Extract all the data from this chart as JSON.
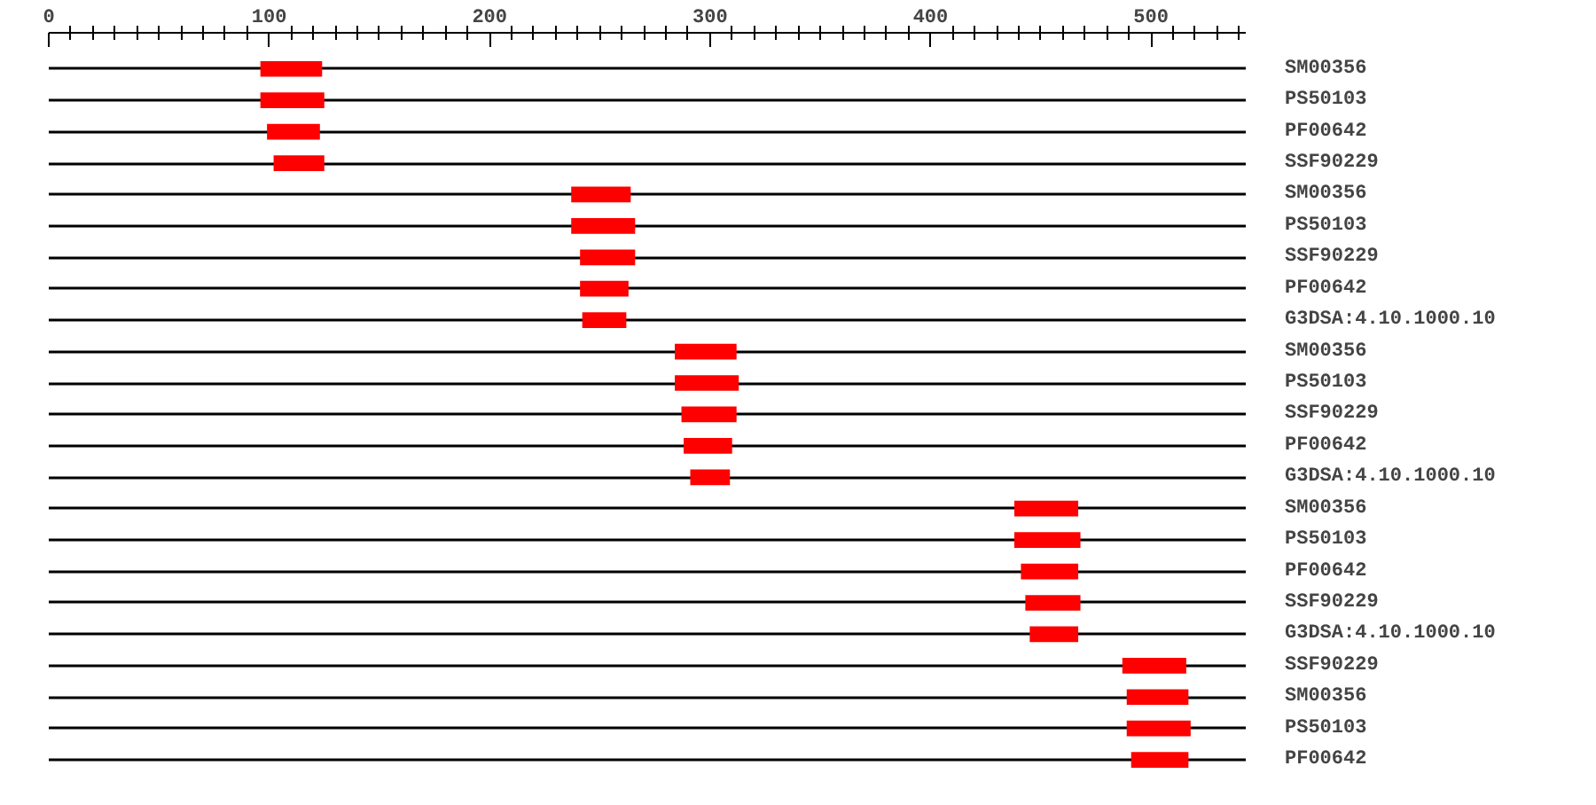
{
  "chart_data": {
    "type": "bar",
    "orientation": "horizontal",
    "categories": [
      "SM00356",
      "PS50103",
      "PF00642",
      "SSF90229",
      "SM00356",
      "PS50103",
      "SSF90229",
      "PF00642",
      "G3DSA:4.10.1000.10",
      "SM00356",
      "PS50103",
      "SSF90229",
      "PF00642",
      "G3DSA:4.10.1000.10",
      "SM00356",
      "PS50103",
      "PF00642",
      "SSF90229",
      "G3DSA:4.10.1000.10",
      "SSF90229",
      "SM00356",
      "PS50103",
      "PF00642"
    ],
    "base": [
      96,
      96,
      99,
      102,
      237,
      237,
      241,
      241,
      242,
      284,
      284,
      287,
      288,
      291,
      438,
      438,
      441,
      443,
      445,
      487,
      489,
      489,
      491
    ],
    "values": [
      28,
      29,
      24,
      23,
      27,
      29,
      25,
      22,
      20,
      28,
      29,
      25,
      22,
      18,
      29,
      30,
      26,
      25,
      22,
      29,
      28,
      29,
      26
    ],
    "color": "#ff0000",
    "xlim": [
      0,
      543
    ],
    "xticks": [
      0,
      {
        "value": 10,
        "label": null
      },
      {
        "value": 20,
        "label": null
      },
      {
        "value": 30,
        "label": null
      },
      {
        "value": 40,
        "label": null
      },
      {
        "value": 50,
        "label": null
      },
      {
        "value": 60,
        "label": null
      },
      {
        "value": 70,
        "label": null
      },
      {
        "value": 80,
        "label": null
      },
      {
        "value": 90,
        "label": null
      },
      100,
      {
        "value": 110,
        "label": null
      },
      {
        "value": 120,
        "label": null
      },
      {
        "value": 130,
        "label": null
      },
      {
        "value": 140,
        "label": null
      },
      {
        "value": 150,
        "label": null
      },
      {
        "value": 160,
        "label": null
      },
      {
        "value": 170,
        "label": null
      },
      {
        "value": 180,
        "label": null
      },
      {
        "value": 190,
        "label": null
      },
      200,
      {
        "value": 210,
        "label": null
      },
      {
        "value": 220,
        "label": null
      },
      {
        "value": 230,
        "label": null
      },
      {
        "value": 240,
        "label": null
      },
      {
        "value": 250,
        "label": null
      },
      {
        "value": 260,
        "label": null
      },
      {
        "value": 270,
        "label": null
      },
      {
        "value": 280,
        "label": null
      },
      {
        "value": 290,
        "label": null
      },
      300,
      {
        "value": 310,
        "label": null
      },
      {
        "value": 320,
        "label": null
      },
      {
        "value": 330,
        "label": null
      },
      {
        "value": 340,
        "label": null
      },
      {
        "value": 350,
        "label": null
      },
      {
        "value": 360,
        "label": null
      },
      {
        "value": 370,
        "label": null
      },
      {
        "value": 380,
        "label": null
      },
      {
        "value": 390,
        "label": null
      },
      400,
      {
        "value": 410,
        "label": null
      },
      {
        "value": 420,
        "label": null
      },
      {
        "value": 430,
        "label": null
      },
      {
        "value": 440,
        "label": null
      },
      {
        "value": 450,
        "label": null
      },
      {
        "value": 460,
        "label": null
      },
      {
        "value": 470,
        "label": null
      },
      {
        "value": 480,
        "label": null
      },
      {
        "value": 490,
        "label": null
      },
      500,
      {
        "value": 510,
        "label": null
      },
      {
        "value": 520,
        "label": null
      },
      {
        "value": 530,
        "label": null
      },
      {
        "value": 540,
        "label": null
      }
    ],
    "grid": "y"
  }
}
